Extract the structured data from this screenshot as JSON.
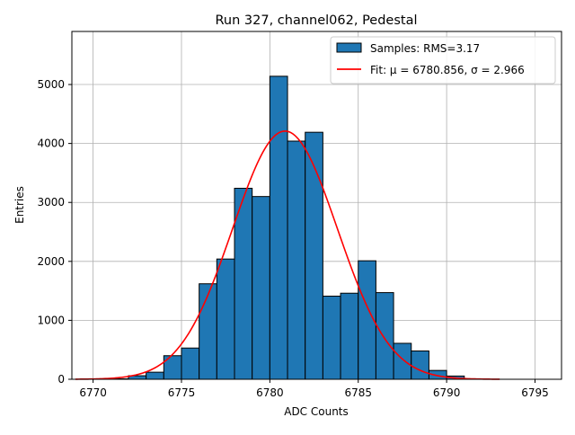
{
  "chart_data": {
    "type": "bar",
    "title": "Run 327, channel062, Pedestal",
    "xlabel": "ADC Counts",
    "ylabel": "Entries",
    "xlim": [
      6768.8,
      6796.5
    ],
    "ylim": [
      0,
      5900
    ],
    "xticks": [
      6770,
      6775,
      6780,
      6785,
      6790,
      6795
    ],
    "yticks": [
      0,
      1000,
      2000,
      3000,
      4000,
      5000
    ],
    "grid": true,
    "legend_position": "top-right",
    "bin_width": 1,
    "bins": [
      {
        "x0": 6771,
        "value": 8
      },
      {
        "x0": 6772,
        "value": 60
      },
      {
        "x0": 6773,
        "value": 120
      },
      {
        "x0": 6774,
        "value": 400
      },
      {
        "x0": 6775,
        "value": 530
      },
      {
        "x0": 6776,
        "value": 1620
      },
      {
        "x0": 6777,
        "value": 2040
      },
      {
        "x0": 6778,
        "value": 3240
      },
      {
        "x0": 6779,
        "value": 3100
      },
      {
        "x0": 6780,
        "value": 5140
      },
      {
        "x0": 6781,
        "value": 4040
      },
      {
        "x0": 6782,
        "value": 4190
      },
      {
        "x0": 6783,
        "value": 1410
      },
      {
        "x0": 6784,
        "value": 1460
      },
      {
        "x0": 6785,
        "value": 2010
      },
      {
        "x0": 6786,
        "value": 1470
      },
      {
        "x0": 6787,
        "value": 610
      },
      {
        "x0": 6788,
        "value": 480
      },
      {
        "x0": 6789,
        "value": 150
      },
      {
        "x0": 6790,
        "value": 55
      }
    ],
    "fit": {
      "mu": 6780.856,
      "sigma": 2.966,
      "amplitude": 4210,
      "x_range": [
        6769,
        6793
      ]
    },
    "series": [
      {
        "name": "Samples: RMS=3.17",
        "kind": "histogram",
        "color": "#1f77b4",
        "edge_color": "#000000"
      },
      {
        "name": "Fit: μ = 6780.856, σ = 2.966",
        "kind": "line",
        "color": "#ff0000"
      }
    ]
  }
}
